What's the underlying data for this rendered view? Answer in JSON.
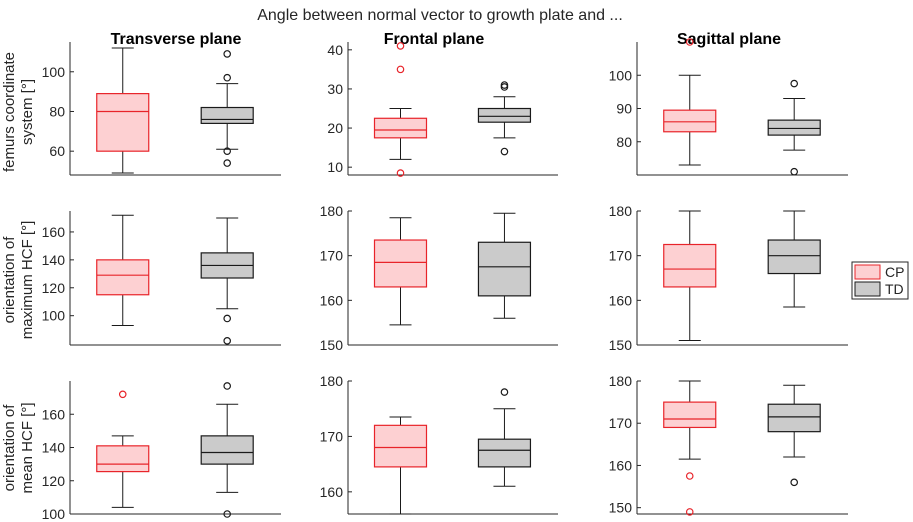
{
  "figure": {
    "title": "Angle between normal vector to growth plate and ...",
    "columns": [
      "Transverse plane",
      "Frontal plane",
      "Sagittal plane"
    ],
    "rows": [
      [
        "femurs coordinate",
        "system [°]"
      ],
      [
        "orientation of",
        "maximum HCF [°]"
      ],
      [
        "orientation of",
        "mean HCF [°]"
      ]
    ],
    "legend": [
      {
        "label": "CP",
        "fill": "#fdd0d2",
        "edge": "#e8242a"
      },
      {
        "label": "TD",
        "fill": "#cbcbcb",
        "edge": "#1a1a1a"
      }
    ],
    "colors": {
      "cp_outlier": "#e8242a",
      "td_outlier": "#1a1a1a",
      "median": "#e8242a",
      "axis": "#262626"
    }
  },
  "chart_data": [
    {
      "type": "box",
      "row": 0,
      "col": 0,
      "ylim": [
        48,
        115
      ],
      "yticks": [
        60,
        80,
        100
      ],
      "groups": [
        {
          "name": "CP",
          "whisker_low": 49,
          "q1": 60,
          "median": 80,
          "q3": 89,
          "whisker_high": 112,
          "outliers": []
        },
        {
          "name": "TD",
          "whisker_low": 61,
          "q1": 74,
          "median": 76,
          "q3": 82,
          "whisker_high": 94,
          "outliers": [
            54,
            60,
            97,
            109
          ]
        }
      ]
    },
    {
      "type": "box",
      "row": 0,
      "col": 1,
      "ylim": [
        8,
        42
      ],
      "yticks": [
        10,
        20,
        30,
        40
      ],
      "groups": [
        {
          "name": "CP",
          "whisker_low": 12,
          "q1": 17.5,
          "median": 19.5,
          "q3": 22.5,
          "whisker_high": 25,
          "outliers": [
            8.5,
            35,
            41
          ]
        },
        {
          "name": "TD",
          "whisker_low": 17.5,
          "q1": 21.5,
          "median": 23,
          "q3": 25,
          "whisker_high": 28,
          "outliers": [
            14,
            30.5,
            31
          ]
        }
      ]
    },
    {
      "type": "box",
      "row": 0,
      "col": 2,
      "ylim": [
        70,
        110
      ],
      "yticks": [
        80,
        90,
        100
      ],
      "groups": [
        {
          "name": "CP",
          "whisker_low": 73,
          "q1": 83,
          "median": 86,
          "q3": 89.5,
          "whisker_high": 100,
          "outliers": [
            110
          ]
        },
        {
          "name": "TD",
          "whisker_low": 77.5,
          "q1": 82,
          "median": 84,
          "q3": 86.5,
          "whisker_high": 93,
          "outliers": [
            71,
            97.5
          ]
        }
      ]
    },
    {
      "type": "box",
      "row": 1,
      "col": 0,
      "ylim": [
        79,
        175
      ],
      "yticks": [
        100,
        120,
        140,
        160
      ],
      "groups": [
        {
          "name": "CP",
          "whisker_low": 93,
          "q1": 115,
          "median": 129,
          "q3": 140,
          "whisker_high": 172,
          "outliers": []
        },
        {
          "name": "TD",
          "whisker_low": 105,
          "q1": 127,
          "median": 136,
          "q3": 145,
          "whisker_high": 170,
          "outliers": [
            82,
            98
          ]
        }
      ]
    },
    {
      "type": "box",
      "row": 1,
      "col": 1,
      "ylim": [
        150,
        180
      ],
      "yticks": [
        150,
        160,
        170,
        180
      ],
      "groups": [
        {
          "name": "CP",
          "whisker_low": 154.5,
          "q1": 163,
          "median": 168.5,
          "q3": 173.5,
          "whisker_high": 178.5,
          "outliers": []
        },
        {
          "name": "TD",
          "whisker_low": 156,
          "q1": 161,
          "median": 167.5,
          "q3": 173,
          "whisker_high": 179.5,
          "outliers": []
        }
      ]
    },
    {
      "type": "box",
      "row": 1,
      "col": 2,
      "ylim": [
        150,
        180
      ],
      "yticks": [
        150,
        160,
        170,
        180
      ],
      "groups": [
        {
          "name": "CP",
          "whisker_low": 151,
          "q1": 163,
          "median": 167,
          "q3": 172.5,
          "whisker_high": 180,
          "outliers": []
        },
        {
          "name": "TD",
          "whisker_low": 158.5,
          "q1": 166,
          "median": 170,
          "q3": 173.5,
          "whisker_high": 180,
          "outliers": []
        }
      ]
    },
    {
      "type": "box",
      "row": 2,
      "col": 0,
      "ylim": [
        100,
        180
      ],
      "yticks": [
        100,
        120,
        140,
        160
      ],
      "groups": [
        {
          "name": "CP",
          "whisker_low": 104,
          "q1": 125.5,
          "median": 130,
          "q3": 141,
          "whisker_high": 147,
          "outliers": [
            172
          ]
        },
        {
          "name": "TD",
          "whisker_low": 113,
          "q1": 130,
          "median": 137,
          "q3": 147,
          "whisker_high": 166,
          "outliers": [
            100,
            177
          ]
        }
      ]
    },
    {
      "type": "box",
      "row": 2,
      "col": 1,
      "ylim": [
        156,
        180
      ],
      "yticks": [
        160,
        170,
        180
      ],
      "groups": [
        {
          "name": "CP",
          "whisker_low": 156,
          "q1": 164.5,
          "median": 168,
          "q3": 172,
          "whisker_high": 173.5,
          "outliers": []
        },
        {
          "name": "TD",
          "whisker_low": 161,
          "q1": 164.5,
          "median": 167.5,
          "q3": 169.5,
          "whisker_high": 175,
          "outliers": [
            178
          ]
        }
      ]
    },
    {
      "type": "box",
      "row": 2,
      "col": 2,
      "ylim": [
        148.5,
        180
      ],
      "yticks": [
        150,
        160,
        170,
        180
      ],
      "groups": [
        {
          "name": "CP",
          "whisker_low": 161.5,
          "q1": 169,
          "median": 171,
          "q3": 175,
          "whisker_high": 180,
          "outliers": [
            149,
            157.5
          ]
        },
        {
          "name": "TD",
          "whisker_low": 162,
          "q1": 168,
          "median": 171.5,
          "q3": 174.5,
          "whisker_high": 179,
          "outliers": [
            156
          ]
        }
      ]
    }
  ]
}
